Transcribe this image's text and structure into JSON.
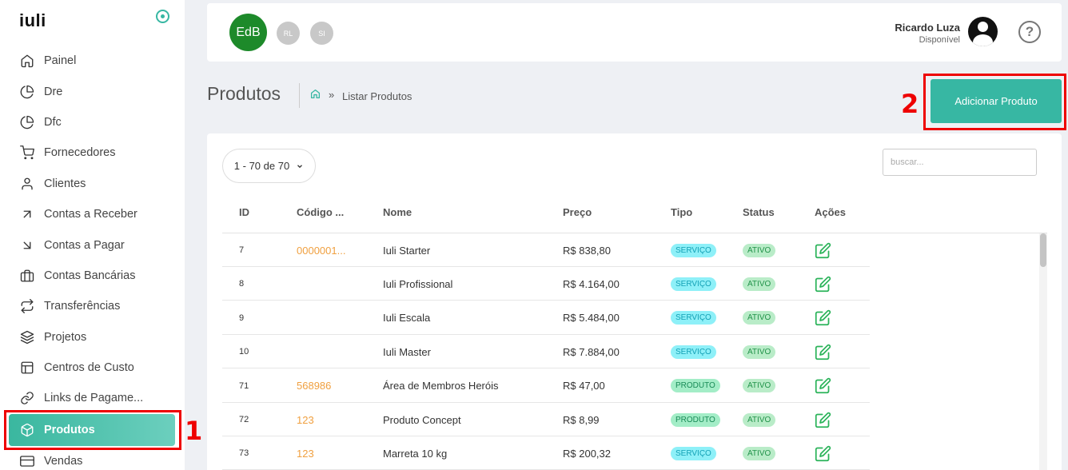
{
  "sidebar": {
    "logo": "iuli",
    "items": [
      {
        "label": "Painel",
        "icon": "home-icon"
      },
      {
        "label": "Dre",
        "icon": "pie-chart-icon"
      },
      {
        "label": "Dfc",
        "icon": "pie-chart-icon"
      },
      {
        "label": "Fornecedores",
        "icon": "cart-icon"
      },
      {
        "label": "Clientes",
        "icon": "user-icon"
      },
      {
        "label": "Contas a Receber",
        "icon": "arrow-up-right-icon"
      },
      {
        "label": "Contas a Pagar",
        "icon": "arrow-down-right-icon"
      },
      {
        "label": "Contas Bancárias",
        "icon": "briefcase-icon"
      },
      {
        "label": "Transferências",
        "icon": "repeat-icon"
      },
      {
        "label": "Projetos",
        "icon": "layers-icon"
      },
      {
        "label": "Centros de Custo",
        "icon": "layout-icon"
      },
      {
        "label": "Links de Pagame...",
        "icon": "link-icon"
      },
      {
        "label": "Produtos",
        "icon": "box-icon",
        "active": true
      },
      {
        "label": "Vendas",
        "icon": "credit-card-icon"
      }
    ]
  },
  "annotations": {
    "mark1": "1",
    "mark2": "2"
  },
  "header": {
    "avatars": [
      "EdB",
      "RL",
      "SI"
    ],
    "user_name": "Ricardo Luza",
    "user_status": "Disponível",
    "help_icon": "?"
  },
  "page": {
    "title": "Produtos",
    "breadcrumb_sep": "»",
    "breadcrumb": "Listar Produtos",
    "add_button": "Adicionar Produto"
  },
  "table": {
    "pager": "1 - 70 de 70",
    "search_placeholder": "buscar...",
    "columns": [
      "ID",
      "Código ...",
      "Nome",
      "Preço",
      "Tipo",
      "Status",
      "Ações"
    ],
    "rows": [
      {
        "id": "7",
        "code": "0000001...",
        "name": "Iuli Starter",
        "price": "R$ 838,80",
        "type": "SERVIÇO",
        "status": "ATIVO"
      },
      {
        "id": "8",
        "code": "",
        "name": "Iuli Profissional",
        "price": "R$ 4.164,00",
        "type": "SERVIÇO",
        "status": "ATIVO"
      },
      {
        "id": "9",
        "code": "",
        "name": "Iuli Escala",
        "price": "R$ 5.484,00",
        "type": "SERVIÇO",
        "status": "ATIVO"
      },
      {
        "id": "10",
        "code": "",
        "name": "Iuli Master",
        "price": "R$ 7.884,00",
        "type": "SERVIÇO",
        "status": "ATIVO"
      },
      {
        "id": "71",
        "code": "568986",
        "name": "Área de Membros Heróis",
        "price": "R$ 47,00",
        "type": "PRODUTO",
        "status": "ATIVO"
      },
      {
        "id": "72",
        "code": "123",
        "name": "Produto Concept",
        "price": "R$ 8,99",
        "type": "PRODUTO",
        "status": "ATIVO"
      },
      {
        "id": "73",
        "code": "123",
        "name": "Marreta 10 kg",
        "price": "R$ 200,32",
        "type": "SERVIÇO",
        "status": "ATIVO"
      }
    ]
  },
  "colors": {
    "accent": "#37b7a3",
    "annotation": "#e00000",
    "edit": "#2bb35a"
  }
}
